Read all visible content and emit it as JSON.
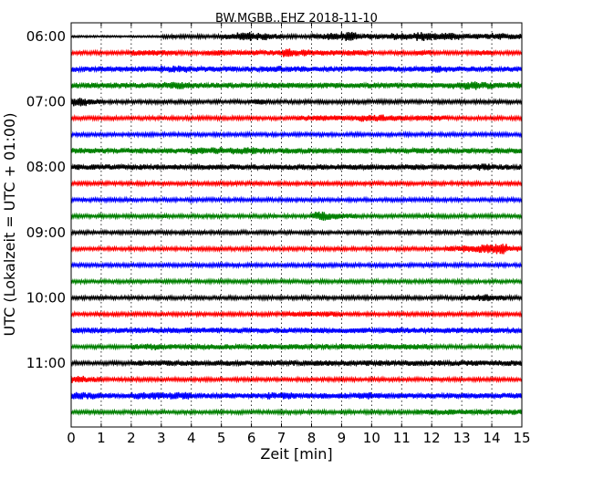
{
  "chart_data": {
    "type": "line",
    "title": "BW.MGBB..EHZ 2018-11-10",
    "xlabel": "Zeit  [min]",
    "ylabel": "UTC (Lokalzeit = UTC + 01:00)",
    "xlim": [
      0,
      15
    ],
    "x_ticks": [
      "0",
      "1",
      "2",
      "3",
      "4",
      "5",
      "6",
      "7",
      "8",
      "9",
      "10",
      "11",
      "12",
      "13",
      "14",
      "15"
    ],
    "y_ticks": [
      {
        "label": "06:00",
        "row": 0
      },
      {
        "label": "07:00",
        "row": 4
      },
      {
        "label": "08:00",
        "row": 8
      },
      {
        "label": "09:00",
        "row": 12
      },
      {
        "label": "10:00",
        "row": 16
      },
      {
        "label": "11:00",
        "row": 20
      }
    ],
    "grid": "vertical dotted at each minute",
    "colors": [
      "#000000",
      "#ff0000",
      "#0000ff",
      "#008000"
    ],
    "series": [
      {
        "start": "06:00",
        "color": "#000000",
        "amp": [
          1,
          1,
          1,
          1,
          1,
          1,
          2,
          2,
          2,
          2,
          3,
          5,
          4,
          3,
          2,
          2,
          3,
          4,
          5,
          3,
          3,
          4,
          4,
          5,
          4,
          4,
          3,
          3,
          4,
          3
        ]
      },
      {
        "start": "06:15",
        "color": "#ff0000",
        "amp": [
          2,
          2,
          2,
          2,
          3,
          3,
          3,
          2,
          2,
          3,
          3,
          3,
          3,
          3,
          5,
          4,
          3,
          3,
          3,
          3,
          2,
          2,
          2,
          3,
          2,
          2,
          2,
          3,
          2,
          2
        ]
      },
      {
        "start": "06:30",
        "color": "#0000ff",
        "amp": [
          3,
          3,
          3,
          3,
          3,
          3,
          4,
          4,
          3,
          3,
          3,
          3,
          3,
          4,
          3,
          3,
          3,
          3,
          3,
          3,
          3,
          3,
          3,
          3,
          4,
          3,
          3,
          3,
          3,
          3
        ]
      },
      {
        "start": "06:45",
        "color": "#008000",
        "amp": [
          3,
          3,
          3,
          3,
          3,
          3,
          4,
          4,
          3,
          3,
          3,
          3,
          3,
          3,
          3,
          3,
          3,
          3,
          3,
          3,
          3,
          3,
          3,
          3,
          3,
          4,
          5,
          4,
          3,
          4
        ]
      },
      {
        "start": "07:00",
        "color": "#000000",
        "amp": [
          5,
          3,
          2,
          2,
          2,
          2,
          2,
          2,
          2,
          2,
          2,
          2,
          3,
          2,
          2,
          2,
          2,
          2,
          2,
          2,
          2,
          2,
          2,
          2,
          2,
          2,
          2,
          2,
          2,
          2
        ]
      },
      {
        "start": "07:15",
        "color": "#ff0000",
        "amp": [
          2,
          2,
          2,
          2,
          2,
          2,
          2,
          2,
          2,
          2,
          2,
          2,
          2,
          2,
          2,
          3,
          3,
          3,
          3,
          4,
          4,
          3,
          3,
          3,
          3,
          2,
          2,
          2,
          2,
          2
        ]
      },
      {
        "start": "07:30",
        "color": "#0000ff",
        "amp": [
          2,
          2,
          2,
          2,
          2,
          2,
          2,
          2,
          2,
          2,
          2,
          2,
          2,
          2,
          2,
          2,
          2,
          2,
          2,
          2,
          2,
          2,
          2,
          2,
          2,
          2,
          2,
          2,
          2,
          2
        ]
      },
      {
        "start": "07:45",
        "color": "#008000",
        "amp": [
          3,
          3,
          3,
          3,
          3,
          3,
          3,
          3,
          4,
          4,
          4,
          4,
          4,
          3,
          3,
          3,
          3,
          3,
          3,
          3,
          3,
          3,
          3,
          3,
          3,
          3,
          3,
          3,
          3,
          3
        ]
      },
      {
        "start": "08:00",
        "color": "#000000",
        "amp": [
          3,
          3,
          3,
          3,
          3,
          3,
          3,
          3,
          3,
          3,
          3,
          3,
          3,
          3,
          3,
          3,
          3,
          3,
          3,
          3,
          3,
          3,
          3,
          3,
          3,
          3,
          3,
          4,
          3,
          3
        ]
      },
      {
        "start": "08:15",
        "color": "#ff0000",
        "amp": [
          2,
          2,
          2,
          2,
          2,
          2,
          2,
          2,
          2,
          2,
          2,
          2,
          2,
          2,
          2,
          2,
          2,
          2,
          2,
          2,
          2,
          2,
          2,
          2,
          2,
          2,
          2,
          2,
          2,
          2
        ]
      },
      {
        "start": "08:30",
        "color": "#0000ff",
        "amp": [
          2,
          2,
          2,
          2,
          2,
          2,
          2,
          2,
          2,
          2,
          2,
          2,
          2,
          2,
          2,
          2,
          2,
          2,
          2,
          2,
          2,
          2,
          2,
          2,
          2,
          2,
          2,
          2,
          2,
          2
        ]
      },
      {
        "start": "08:45",
        "color": "#008000",
        "amp": [
          2,
          2,
          2,
          2,
          2,
          2,
          2,
          2,
          2,
          2,
          2,
          2,
          2,
          2,
          2,
          2,
          5,
          4,
          3,
          2,
          2,
          2,
          2,
          2,
          2,
          2,
          2,
          2,
          2,
          2
        ]
      },
      {
        "start": "09:00",
        "color": "#000000",
        "amp": [
          2,
          2,
          2,
          2,
          2,
          2,
          2,
          2,
          2,
          2,
          2,
          2,
          2,
          2,
          2,
          2,
          2,
          2,
          2,
          2,
          2,
          2,
          2,
          2,
          2,
          2,
          2,
          2,
          2,
          2
        ]
      },
      {
        "start": "09:15",
        "color": "#ff0000",
        "amp": [
          2,
          2,
          2,
          2,
          2,
          2,
          2,
          2,
          2,
          2,
          2,
          2,
          2,
          2,
          2,
          2,
          2,
          2,
          2,
          2,
          2,
          2,
          2,
          2,
          2,
          3,
          4,
          5,
          6,
          3
        ]
      },
      {
        "start": "09:30",
        "color": "#0000ff",
        "amp": [
          2,
          2,
          2,
          2,
          2,
          2,
          2,
          2,
          2,
          2,
          2,
          2,
          2,
          2,
          2,
          2,
          2,
          2,
          2,
          2,
          2,
          2,
          2,
          2,
          2,
          2,
          2,
          2,
          2,
          2
        ]
      },
      {
        "start": "09:45",
        "color": "#008000",
        "amp": [
          2,
          2,
          2,
          2,
          2,
          2,
          2,
          2,
          2,
          2,
          2,
          2,
          2,
          2,
          2,
          2,
          2,
          2,
          2,
          2,
          2,
          2,
          2,
          2,
          2,
          2,
          2,
          2,
          2,
          2
        ]
      },
      {
        "start": "10:00",
        "color": "#000000",
        "amp": [
          2,
          2,
          2,
          2,
          2,
          2,
          2,
          2,
          2,
          2,
          2,
          2,
          2,
          2,
          2,
          2,
          2,
          2,
          2,
          2,
          2,
          2,
          2,
          2,
          2,
          2,
          3,
          4,
          3,
          2
        ]
      },
      {
        "start": "10:15",
        "color": "#ff0000",
        "amp": [
          2,
          2,
          2,
          2,
          2,
          2,
          2,
          2,
          2,
          2,
          2,
          2,
          2,
          2,
          3,
          3,
          3,
          3,
          2,
          2,
          2,
          2,
          2,
          2,
          2,
          2,
          2,
          2,
          2,
          2
        ]
      },
      {
        "start": "10:30",
        "color": "#0000ff",
        "amp": [
          3,
          3,
          3,
          3,
          3,
          3,
          3,
          3,
          3,
          3,
          3,
          3,
          3,
          3,
          3,
          3,
          3,
          3,
          3,
          3,
          3,
          3,
          3,
          3,
          3,
          3,
          3,
          3,
          3,
          3
        ]
      },
      {
        "start": "10:45",
        "color": "#008000",
        "amp": [
          2,
          2,
          2,
          2,
          3,
          4,
          3,
          3,
          3,
          3,
          3,
          3,
          3,
          3,
          3,
          3,
          3,
          3,
          3,
          3,
          3,
          3,
          3,
          3,
          2,
          2,
          2,
          2,
          2,
          2
        ]
      },
      {
        "start": "11:00",
        "color": "#000000",
        "amp": [
          2,
          2,
          2,
          2,
          3,
          3,
          3,
          3,
          3,
          3,
          3,
          3,
          3,
          3,
          3,
          3,
          3,
          3,
          3,
          3,
          3,
          3,
          3,
          3,
          3,
          3,
          3,
          3,
          3,
          3
        ]
      },
      {
        "start": "11:15",
        "color": "#ff0000",
        "amp": [
          4,
          3,
          2,
          2,
          2,
          2,
          2,
          2,
          2,
          2,
          2,
          2,
          2,
          2,
          2,
          2,
          2,
          2,
          2,
          2,
          2,
          2,
          2,
          2,
          2,
          2,
          2,
          2,
          2,
          2
        ]
      },
      {
        "start": "11:30",
        "color": "#0000ff",
        "amp": [
          4,
          4,
          3,
          3,
          4,
          4,
          4,
          4,
          3,
          3,
          3,
          3,
          3,
          4,
          4,
          3,
          3,
          3,
          3,
          4,
          3,
          3,
          3,
          3,
          3,
          3,
          3,
          3,
          3,
          3
        ]
      },
      {
        "start": "11:45",
        "color": "#008000",
        "amp": [
          2,
          2,
          2,
          2,
          2,
          2,
          2,
          2,
          2,
          2,
          2,
          2,
          2,
          2,
          2,
          2,
          2,
          2,
          2,
          2,
          2,
          2,
          2,
          3,
          3,
          3,
          3,
          3,
          3,
          3
        ]
      }
    ]
  }
}
